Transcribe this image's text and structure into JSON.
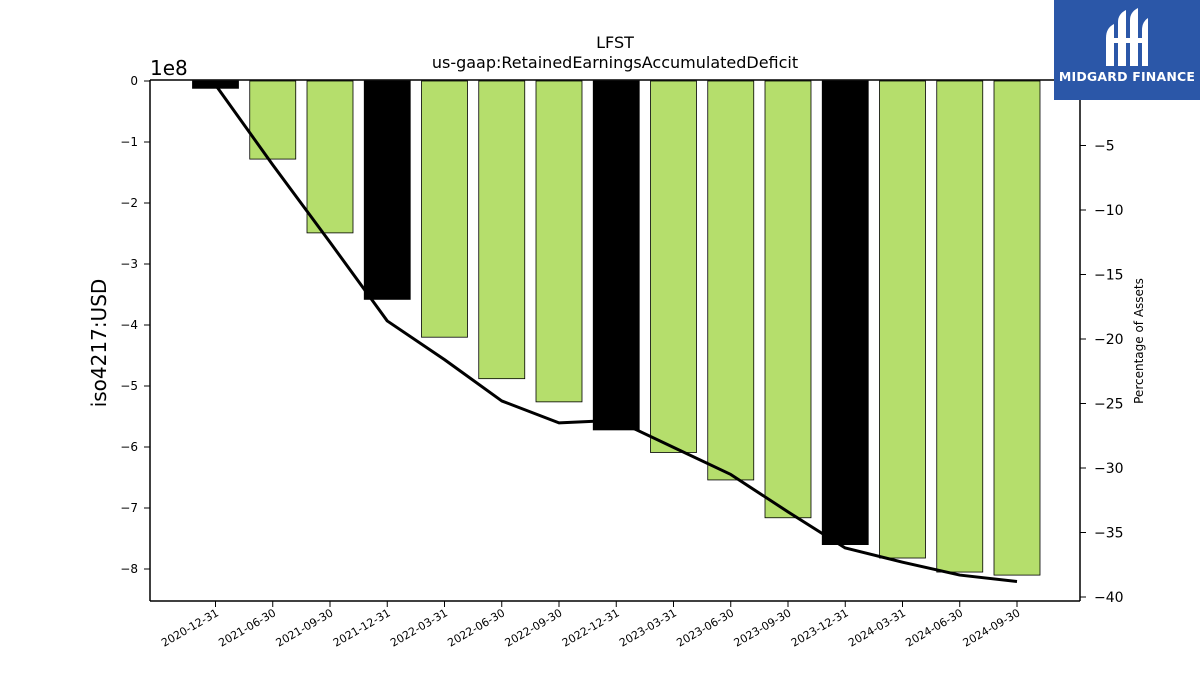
{
  "chart_data": {
    "type": "bar",
    "title": "LFST",
    "subtitle": "us-gaap:RetainedEarningsAccumulatedDeficit",
    "ylabel": "iso4217:USD",
    "y_offset_label": "1e8",
    "y2label": "Percentage of Assets",
    "ylim": [
      -8.5,
      0
    ],
    "y2lim": [
      -40,
      0
    ],
    "yticks": [
      0,
      -1,
      -2,
      -3,
      -4,
      -5,
      -6,
      -7,
      -8
    ],
    "y2ticks": [
      -5,
      -10,
      -15,
      -20,
      -25,
      -30,
      -35,
      -40
    ],
    "categories": [
      "2020-12-31",
      "2021-06-30",
      "2021-09-30",
      "2021-12-31",
      "2022-03-31",
      "2022-06-30",
      "2022-09-30",
      "2022-12-31",
      "2023-03-31",
      "2023-06-30",
      "2023-09-30",
      "2023-12-31",
      "2024-03-31",
      "2024-06-30",
      "2024-09-30"
    ],
    "series": [
      {
        "type": "bar",
        "values": [
          -0.12,
          -1.28,
          -2.49,
          -3.58,
          -4.2,
          -4.88,
          -5.26,
          -5.72,
          -6.09,
          -6.54,
          -7.16,
          -7.6,
          -7.82,
          -8.05,
          -8.1
        ]
      },
      {
        "type": "line",
        "axis": "right",
        "values": [
          -0.3,
          -6.5,
          -12.5,
          -18.6,
          -21.6,
          -24.8,
          -26.5,
          -26.3,
          -28.4,
          -30.5,
          -33.4,
          -36.2,
          -37.3,
          -38.3,
          -38.8
        ]
      }
    ],
    "bar_colors": [
      "#000000",
      "#b5de6c",
      "#b5de6c",
      "#000000",
      "#b5de6c",
      "#b5de6c",
      "#b5de6c",
      "#000000",
      "#b5de6c",
      "#b5de6c",
      "#b5de6c",
      "#000000",
      "#b5de6c",
      "#b5de6c",
      "#b5de6c"
    ],
    "line_color": "#000000",
    "grid": false,
    "legend": "none"
  },
  "logo": {
    "text": "MIDGARD FINANCE",
    "background": "#2b57a8"
  }
}
